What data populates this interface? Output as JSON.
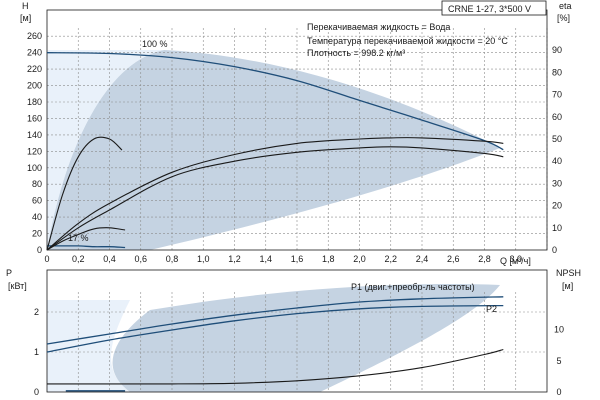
{
  "chart_data": [
    {
      "type": "line",
      "title": "CRNE 1-27, 3*500 V",
      "info_lines": [
        "Перекачиваемая жидкость = Вода",
        "Температура перекачиваемой жидкости = 20 °C",
        "Плотность = 998.2 кг/м³"
      ],
      "xlabel": "Q [м³/ч]",
      "ylabel_left": [
        "H",
        "[м]"
      ],
      "ylabel_right": [
        "eta",
        "[%]"
      ],
      "xlim": [
        0,
        3.2
      ],
      "ylim_left": [
        0,
        270
      ],
      "ylim_right": [
        0,
        100
      ],
      "x_ticks": [
        "0",
        "0,2",
        "0,4",
        "0,6",
        "0,8",
        "1,0",
        "1,2",
        "1,4",
        "1,6",
        "1,8",
        "2,0",
        "2,2",
        "2,4",
        "2,6",
        "2,8",
        "3,0"
      ],
      "y_ticks_left": [
        "0",
        "20",
        "40",
        "60",
        "80",
        "100",
        "120",
        "140",
        "160",
        "180",
        "200",
        "220",
        "240",
        "260"
      ],
      "y_ticks_right": [
        "0",
        "10",
        "20",
        "30",
        "40",
        "50",
        "60",
        "70",
        "80",
        "90"
      ],
      "annotations": [
        "100 %",
        "17 %"
      ],
      "grid": true,
      "series": [
        {
          "axis": "left",
          "color": "#1f4e79",
          "x": [
            0,
            0.4,
            0.8,
            1.2,
            1.6,
            2.0,
            2.4,
            2.8,
            2.92
          ],
          "values": [
            240,
            239,
            234,
            223,
            206,
            182,
            158,
            133,
            122
          ]
        },
        {
          "axis": "left",
          "color": "#1f4e79",
          "x": [
            0,
            0.1,
            0.2,
            0.3,
            0.4,
            0.5
          ],
          "values": [
            5,
            5,
            5,
            4,
            4,
            3
          ]
        },
        {
          "axis": "right",
          "color": "#1a1a1a",
          "x": [
            0,
            0.2,
            0.4,
            0.8,
            1.2,
            1.6,
            2.0,
            2.2,
            2.4,
            2.8,
            2.92
          ],
          "values": [
            0,
            12,
            21,
            35,
            43,
            48,
            50,
            50.5,
            50.5,
            49,
            48
          ]
        },
        {
          "axis": "right",
          "color": "#1a1a1a",
          "x": [
            0,
            0.2,
            0.4,
            0.8,
            1.2,
            1.6,
            2.0,
            2.2,
            2.4,
            2.8,
            2.92
          ],
          "values": [
            0,
            10,
            18,
            33,
            40,
            44,
            46,
            46.5,
            46,
            43.5,
            42
          ]
        },
        {
          "axis": "right",
          "color": "#1a1a1a",
          "x": [
            0,
            0.1,
            0.2,
            0.3,
            0.4,
            0.48
          ],
          "values": [
            0,
            25,
            42,
            50,
            50,
            45
          ]
        },
        {
          "axis": "right",
          "color": "#1a1a1a",
          "x": [
            0,
            0.1,
            0.2,
            0.3,
            0.4,
            0.5
          ],
          "values": [
            0,
            4,
            7,
            9.5,
            10,
            9
          ]
        }
      ]
    },
    {
      "type": "line",
      "ylabel_left": [
        "P",
        "[кВт]"
      ],
      "ylabel_right": [
        "NPSH",
        "[м]"
      ],
      "xlim": [
        0,
        3.2
      ],
      "ylim_left": [
        0,
        2.5
      ],
      "ylim_right": [
        0,
        16
      ],
      "y_ticks_left": [
        "0",
        "1",
        "2"
      ],
      "y_ticks_right": [
        "0",
        "5",
        "10"
      ],
      "grid": true,
      "series": [
        {
          "name": "P1 (двиг.+преобр-ль частоты)",
          "axis": "left",
          "color": "#1f4e79",
          "x": [
            0,
            0.4,
            0.8,
            1.2,
            1.6,
            2.0,
            2.4,
            2.92
          ],
          "values": [
            1.2,
            1.45,
            1.7,
            1.92,
            2.1,
            2.25,
            2.33,
            2.38
          ]
        },
        {
          "name": "P2",
          "axis": "left",
          "color": "#1f4e79",
          "x": [
            0,
            0.4,
            0.8,
            1.2,
            1.6,
            2.0,
            2.4,
            2.92
          ],
          "values": [
            1.0,
            1.3,
            1.55,
            1.78,
            1.96,
            2.08,
            2.14,
            2.16
          ]
        },
        {
          "axis": "left",
          "color": "#1f4e79",
          "x": [
            0.12,
            0.5
          ],
          "values": [
            0.03,
            0.03
          ]
        },
        {
          "axis": "right",
          "color": "#1a1a1a",
          "x": [
            0,
            0.8,
            1.2,
            1.6,
            2.0,
            2.4,
            2.8,
            2.92
          ],
          "values": [
            1.3,
            1.3,
            1.4,
            1.8,
            2.6,
            3.9,
            6.0,
            6.8
          ]
        }
      ]
    }
  ]
}
